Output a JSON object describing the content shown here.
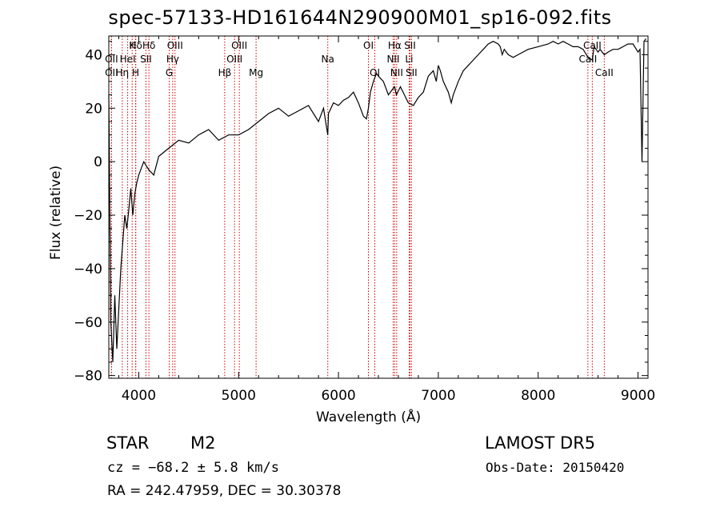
{
  "title": "spec-57133-HD161644N290900M01_sp16-092.fits",
  "info": {
    "object_class": "STAR",
    "subclass": "M2",
    "survey": "LAMOST DR5",
    "cz": "cz = −68.2 ± 5.8 km/s",
    "obs_date": "Obs-Date: 20150420",
    "radec": "RA = 242.47959, DEC =  30.30378"
  },
  "colors": {
    "spectrum": "#000000",
    "line_marker": "#cc0000",
    "frame": "#000000"
  },
  "chart_data": {
    "type": "line",
    "xlabel": "Wavelength (Å)",
    "ylabel": "Flux (relative)",
    "xlim": [
      3700,
      9100
    ],
    "ylim": [
      -81,
      47
    ],
    "x_ticks": [
      4000,
      5000,
      6000,
      7000,
      8000,
      9000
    ],
    "y_ticks": [
      -80,
      -60,
      -40,
      -20,
      0,
      20,
      40
    ],
    "x_tick_labels": [
      "4000",
      "5000",
      "6000",
      "7000",
      "8000",
      "9000"
    ],
    "y_tick_labels": [
      "−80",
      "−60",
      "−40",
      "−20",
      "0",
      "20",
      "40"
    ],
    "grid": false,
    "series": [
      {
        "x": [
          3700,
          3720,
          3740,
          3760,
          3780,
          3800,
          3820,
          3840,
          3860,
          3880,
          3900,
          3920,
          3940,
          3960,
          3980,
          4000,
          4050,
          4100,
          4150,
          4200,
          4300,
          4400,
          4500,
          4600,
          4700,
          4800,
          4900,
          5000,
          5100,
          5200,
          5300,
          5400,
          5500,
          5600,
          5700,
          5800,
          5850,
          5893,
          5900,
          5950,
          6000,
          6050,
          6100,
          6150,
          6200,
          6250,
          6280,
          6300,
          6320,
          6350,
          6380,
          6400,
          6450,
          6500,
          6540,
          6563,
          6580,
          6620,
          6660,
          6700,
          6750,
          6800,
          6850,
          6900,
          6950,
          6980,
          7000,
          7020,
          7050,
          7100,
          7130,
          7150,
          7200,
          7250,
          7300,
          7350,
          7400,
          7450,
          7500,
          7550,
          7600,
          7620,
          7640,
          7660,
          7700,
          7750,
          7800,
          7900,
          8000,
          8100,
          8150,
          8200,
          8250,
          8300,
          8350,
          8400,
          8450,
          8500,
          8542,
          8560,
          8600,
          8620,
          8662,
          8700,
          8750,
          8800,
          8850,
          8900,
          8950,
          9000,
          9020,
          9040,
          9060,
          9080
        ],
        "y": [
          25,
          -60,
          -75,
          -50,
          -70,
          -55,
          -40,
          -30,
          -20,
          -25,
          -18,
          -10,
          -20,
          -12,
          -8,
          -5,
          0,
          -3,
          -5,
          2,
          5,
          8,
          7,
          10,
          12,
          8,
          10,
          10,
          12,
          15,
          18,
          20,
          17,
          19,
          21,
          15,
          20,
          10,
          18,
          22,
          21,
          23,
          24,
          26,
          22,
          17,
          16,
          20,
          26,
          30,
          33,
          32,
          30,
          25,
          27,
          28,
          25,
          28,
          25,
          22,
          21,
          24,
          26,
          32,
          34,
          30,
          36,
          34,
          30,
          26,
          22,
          25,
          30,
          34,
          36,
          38,
          40,
          42,
          44,
          45,
          44,
          43,
          40,
          42,
          40,
          39,
          40,
          42,
          43,
          44,
          45,
          44,
          45,
          44,
          43,
          43,
          42,
          39,
          38,
          43,
          41,
          42,
          40,
          41,
          42,
          42,
          43,
          44,
          44,
          41,
          42,
          0,
          45,
          46
        ]
      }
    ],
    "lines": [
      {
        "name": "Hδ",
        "wavelength": 3970,
        "row": 1
      },
      {
        "name": "K",
        "wavelength": 3934,
        "row": 1
      },
      {
        "name": "Hδ",
        "wavelength": 4102,
        "row": 1
      },
      {
        "name": "OII",
        "wavelength": 3727,
        "row": 2
      },
      {
        "name": "HeI",
        "wavelength": 3889,
        "row": 2
      },
      {
        "name": "SII",
        "wavelength": 4072,
        "row": 2
      },
      {
        "name": "OII",
        "wavelength": 3727,
        "row": 3
      },
      {
        "name": "Hη",
        "wavelength": 3835,
        "row": 3
      },
      {
        "name": "H",
        "wavelength": 3969,
        "row": 3
      },
      {
        "name": "OIII",
        "wavelength": 4363,
        "row": 1
      },
      {
        "name": "Hγ",
        "wavelength": 4340,
        "row": 2
      },
      {
        "name": "G",
        "wavelength": 4305,
        "row": 3
      },
      {
        "name": "OIII",
        "wavelength": 5007,
        "row": 1
      },
      {
        "name": "OIII",
        "wavelength": 4959,
        "row": 2
      },
      {
        "name": "Hβ",
        "wavelength": 4861,
        "row": 3
      },
      {
        "name": "Mg",
        "wavelength": 5175,
        "row": 3
      },
      {
        "name": "Na",
        "wavelength": 5893,
        "row": 2
      },
      {
        "name": "OI",
        "wavelength": 6300,
        "row": 1
      },
      {
        "name": "OI",
        "wavelength": 6364,
        "row": 3
      },
      {
        "name": "Hα",
        "wavelength": 6563,
        "row": 1
      },
      {
        "name": "SII",
        "wavelength": 6716,
        "row": 1
      },
      {
        "name": "NII",
        "wavelength": 6548,
        "row": 2
      },
      {
        "name": "Li",
        "wavelength": 6708,
        "row": 2
      },
      {
        "name": "NII",
        "wavelength": 6583,
        "row": 3
      },
      {
        "name": "SII",
        "wavelength": 6731,
        "row": 3
      },
      {
        "name": "CaII",
        "wavelength": 8542,
        "row": 1
      },
      {
        "name": "CaII",
        "wavelength": 8498,
        "row": 2
      },
      {
        "name": "CaII",
        "wavelength": 8662,
        "row": 3
      }
    ]
  }
}
